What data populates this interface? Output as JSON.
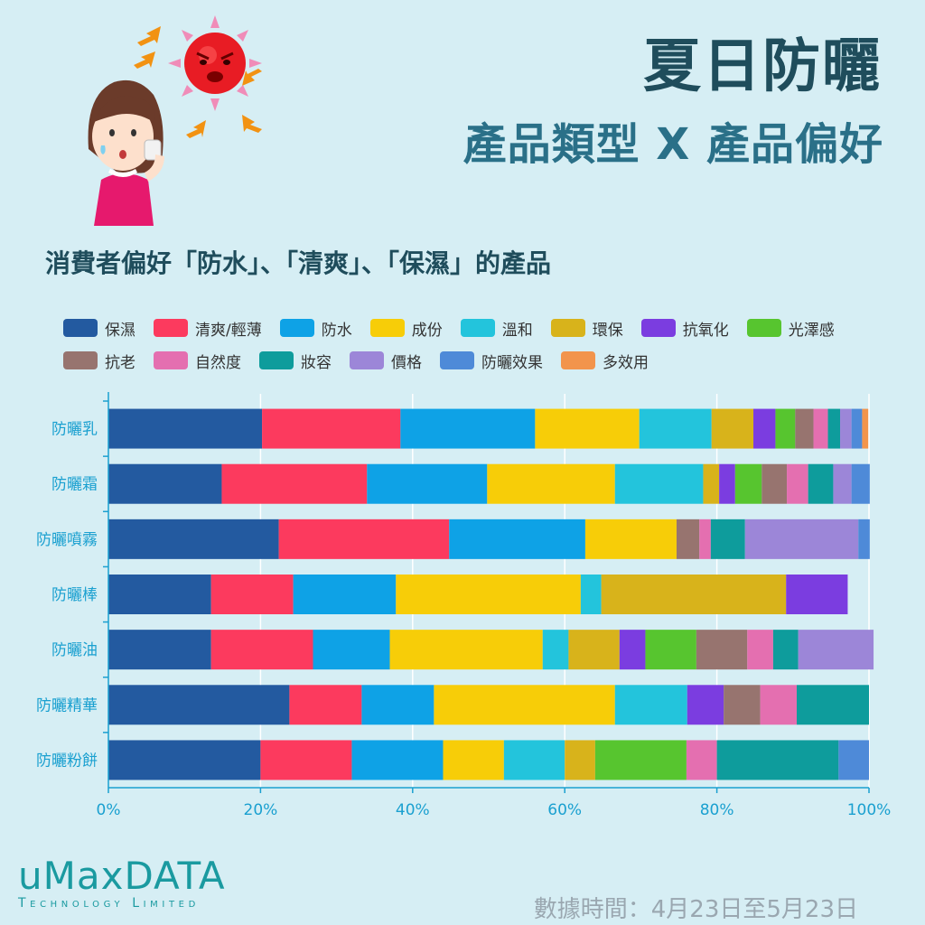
{
  "title": "夏日防曬",
  "subtitle": "產品類型 X 產品偏好",
  "chart_heading": "消費者偏好「防水」、「清爽」、「保濕」的產品",
  "footer": "數據時間：4月23日至5月23日",
  "logo": {
    "main": "uMaxDATA",
    "sub": "Technology Limited"
  },
  "illustration_icons": [
    "woman-icon",
    "sun-icon",
    "heat-arrows-icon"
  ],
  "chart_data": {
    "type": "bar",
    "orientation": "horizontal",
    "stacked": "100%",
    "categories": [
      "防曬乳",
      "防曬霜",
      "防曬噴霧",
      "防曬棒",
      "防曬油",
      "防曬精華",
      "防曬粉餅"
    ],
    "xlim": [
      0,
      100
    ],
    "xticks": [
      "0%",
      "20%",
      "40%",
      "60%",
      "80%",
      "100%"
    ],
    "legend_position": "top",
    "series": [
      {
        "name": "保濕",
        "color": "#235aa0",
        "values": [
          20.2,
          14.9,
          22.4,
          13.5,
          13.5,
          23.8,
          20.0
        ]
      },
      {
        "name": "清爽/輕薄",
        "color": "#fc3a5e",
        "values": [
          18.2,
          19.1,
          22.4,
          10.8,
          13.4,
          9.5,
          12.0
        ]
      },
      {
        "name": "防水",
        "color": "#0ea2e6",
        "values": [
          17.7,
          15.8,
          17.9,
          13.5,
          10.1,
          9.5,
          12.0
        ]
      },
      {
        "name": "成份",
        "color": "#f7cd08",
        "values": [
          13.7,
          16.8,
          12.0,
          24.3,
          20.1,
          23.8,
          8.0
        ]
      },
      {
        "name": "溫和",
        "color": "#23c4dc",
        "values": [
          9.5,
          11.6,
          0,
          2.7,
          3.4,
          9.5,
          8.0
        ]
      },
      {
        "name": "環保",
        "color": "#d8b31b",
        "values": [
          5.5,
          2.1,
          0,
          24.3,
          6.7,
          0,
          4.0
        ]
      },
      {
        "name": "抗氧化",
        "color": "#7b3de0",
        "values": [
          2.9,
          2.1,
          0,
          8.1,
          3.4,
          4.8,
          0
        ]
      },
      {
        "name": "光澤感",
        "color": "#57c52f",
        "values": [
          2.6,
          3.5,
          0,
          0,
          6.7,
          0,
          12.0
        ]
      },
      {
        "name": "抗老",
        "color": "#97746f",
        "values": [
          2.4,
          3.3,
          3.0,
          0,
          6.7,
          4.8,
          0
        ]
      },
      {
        "name": "自然度",
        "color": "#e46fb0",
        "values": [
          1.9,
          2.8,
          1.5,
          0,
          3.4,
          4.8,
          4.0
        ]
      },
      {
        "name": "妝容",
        "color": "#0e9c9c",
        "values": [
          1.6,
          3.3,
          4.5,
          0,
          3.3,
          9.5,
          16.0
        ]
      },
      {
        "name": "價格",
        "color": "#9c86d8",
        "values": [
          1.5,
          2.4,
          14.9,
          0,
          9.9,
          0,
          0
        ]
      },
      {
        "name": "防曬效果",
        "color": "#4e8ad8",
        "values": [
          1.4,
          2.4,
          1.5,
          0,
          0,
          0,
          4.0
        ]
      },
      {
        "name": "多效用",
        "color": "#f2944c",
        "values": [
          0.8,
          0,
          0,
          0,
          0,
          0,
          0
        ]
      }
    ]
  }
}
